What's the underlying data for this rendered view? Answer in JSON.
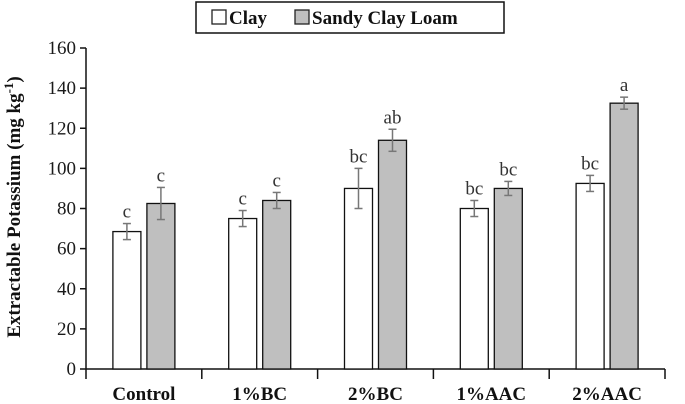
{
  "chart_data": {
    "type": "bar",
    "categories": [
      "Control",
      "1%BC",
      "2%BC",
      "1%AAC",
      "2%AAC"
    ],
    "series": [
      {
        "name": "Clay",
        "color": "#ffffff",
        "values": [
          68.5,
          75,
          90,
          80,
          92.5
        ],
        "errors": [
          4,
          4,
          10,
          4,
          4
        ],
        "letters": [
          "c",
          "c",
          "bc",
          "bc",
          "bc"
        ]
      },
      {
        "name": "Sandy Clay Loam",
        "color": "#bfbfbf",
        "values": [
          82.5,
          84,
          114,
          90,
          132.5
        ],
        "errors": [
          8,
          4,
          5.5,
          3.5,
          3
        ],
        "letters": [
          "c",
          "c",
          "ab",
          "bc",
          "a"
        ]
      }
    ],
    "ylabel": "Extractable Potassium (mg kg",
    "ylabel_superscript": "-1",
    "ylabel_suffix": ")",
    "ylim": [
      0,
      160
    ],
    "yticks": [
      0,
      20,
      40,
      60,
      80,
      100,
      120,
      140,
      160
    ],
    "legend_position": "top-center",
    "grid": false
  },
  "legend": {
    "items": [
      {
        "label": "Clay"
      },
      {
        "label": "Sandy Clay Loam"
      }
    ]
  }
}
